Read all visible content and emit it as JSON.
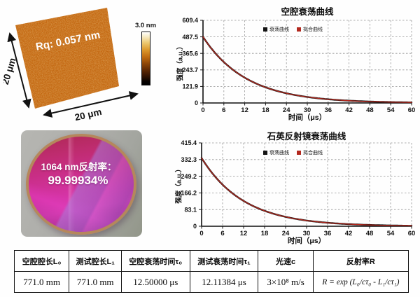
{
  "afm": {
    "rq_label": "Rq: 0.057 nm",
    "side_label": "20 μm",
    "bottom_label": "20 μm",
    "scale_label": "3.0 nm",
    "surface_color": "#c4660f"
  },
  "mirror": {
    "line1": "1064 nm反射率：",
    "line2": "99.99934%",
    "coating_color": "#cb2f8c"
  },
  "chart_data": [
    {
      "type": "line",
      "title": "空腔衰荡曲线",
      "xlabel": "时间（μs）",
      "ylabel": "强度（a.u.）",
      "legend": [
        "衰荡曲线",
        "拟合曲线"
      ],
      "legend_colors": [
        "#141414",
        "#b3281e"
      ],
      "legend_position": "top-center",
      "grid": true,
      "xlim": [
        0,
        60
      ],
      "ylim": [
        0,
        609.4
      ],
      "x_ticks": [
        0,
        6,
        12,
        18,
        24,
        30,
        36,
        42,
        48,
        54,
        60
      ],
      "y_tick_labels": [
        "609.4",
        "487.5",
        "365.6",
        "243.7",
        "121.9",
        "0"
      ],
      "series": {
        "model": "exponential_decay",
        "initial": 487.5,
        "tau_us": 12.5
      },
      "x": [
        0,
        6,
        12,
        18,
        24,
        30,
        36,
        42,
        48,
        54,
        60
      ],
      "y": [
        487.5,
        301.7,
        186.7,
        115.5,
        71.5,
        44.2,
        27.4,
        16.9,
        10.5,
        6.5,
        4.0
      ]
    },
    {
      "type": "line",
      "title": "石英反射镜衰荡曲线",
      "xlabel": "时间（μs）",
      "ylabel": "强度（a.u.）",
      "legend": [
        "衰荡曲线",
        "拟合曲线"
      ],
      "legend_colors": [
        "#141414",
        "#b3281e"
      ],
      "legend_position": "top-center",
      "grid": true,
      "xlim": [
        0,
        60
      ],
      "ylim": [
        0,
        415.4
      ],
      "x_ticks": [
        0,
        6,
        12,
        18,
        24,
        30,
        36,
        42,
        48,
        54,
        60
      ],
      "y_tick_labels": [
        "415.4",
        "332.3",
        "249.2",
        "166.2",
        "83.1",
        "0"
      ],
      "series": {
        "model": "exponential_decay",
        "initial": 340,
        "tau_us": 12.11
      },
      "x": [
        0,
        6,
        12,
        18,
        24,
        30,
        36,
        42,
        48,
        54,
        60
      ],
      "y": [
        340,
        207.2,
        126.2,
        76.9,
        46.9,
        28.5,
        17.4,
        10.6,
        6.5,
        3.9,
        2.4
      ]
    }
  ],
  "table": {
    "headers": [
      "空腔腔长L₀",
      "测试腔长L₁",
      "空腔衰荡时间τ₀",
      "测试衰荡时间τ₁",
      "光速c",
      "反射率R"
    ],
    "values": [
      "771.0 mm",
      "771.0 mm",
      "12.50000 μs",
      "12.11384 μs",
      "3×10⁸ m/s",
      "R = exp (L₀/cτ₀ - L₁/cτ₁)"
    ]
  }
}
